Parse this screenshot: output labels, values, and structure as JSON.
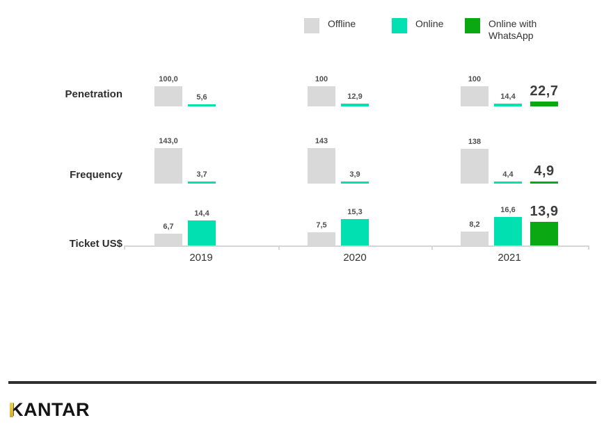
{
  "legend": [
    {
      "label": "Offline",
      "color": "#d9d9d9"
    },
    {
      "label": "Online",
      "color": "#00e0b1"
    },
    {
      "label": "Online with WhatsApp",
      "color": "#0aa812"
    }
  ],
  "logo": {
    "text": "KANTAR",
    "accent_color": "#d7aa28"
  },
  "chart_data": {
    "type": "bar",
    "title": "",
    "legend_position": "top",
    "grid": false,
    "years": [
      "2019",
      "2020",
      "2021"
    ],
    "series_names": [
      "Offline",
      "Online",
      "Online with WhatsApp"
    ],
    "colors": {
      "Offline": "#d9d9d9",
      "Online": "#00e0b1",
      "Online with WhatsApp": "#0aa812"
    },
    "rows": [
      {
        "metric": "Penetration",
        "groups": [
          {
            "year": "2019",
            "bars": [
              {
                "series": "Offline",
                "value": 100.0,
                "label": "100,0"
              },
              {
                "series": "Online",
                "value": 5.6,
                "label": "5,6"
              }
            ]
          },
          {
            "year": "2020",
            "bars": [
              {
                "series": "Offline",
                "value": 100,
                "label": "100"
              },
              {
                "series": "Online",
                "value": 12.9,
                "label": "12,9"
              }
            ]
          },
          {
            "year": "2021",
            "bars": [
              {
                "series": "Offline",
                "value": 100,
                "label": "100"
              },
              {
                "series": "Online",
                "value": 14.4,
                "label": "14,4"
              },
              {
                "series": "Online with WhatsApp",
                "value": 22.7,
                "label": "22,7",
                "emphasis": true
              }
            ]
          }
        ]
      },
      {
        "metric": "Frequency",
        "groups": [
          {
            "year": "2019",
            "bars": [
              {
                "series": "Offline",
                "value": 143.0,
                "label": "143,0"
              },
              {
                "series": "Online",
                "value": 3.7,
                "label": "3,7"
              }
            ]
          },
          {
            "year": "2020",
            "bars": [
              {
                "series": "Offline",
                "value": 143,
                "label": "143"
              },
              {
                "series": "Online",
                "value": 3.9,
                "label": "3,9"
              }
            ]
          },
          {
            "year": "2021",
            "bars": [
              {
                "series": "Offline",
                "value": 138,
                "label": "138"
              },
              {
                "series": "Online",
                "value": 4.4,
                "label": "4,4"
              },
              {
                "series": "Online with WhatsApp",
                "value": 4.9,
                "label": "4,9",
                "emphasis": true
              }
            ]
          }
        ]
      },
      {
        "metric": "Ticket US$",
        "groups": [
          {
            "year": "2019",
            "bars": [
              {
                "series": "Offline",
                "value": 6.7,
                "label": "6,7"
              },
              {
                "series": "Online",
                "value": 14.4,
                "label": "14,4"
              }
            ]
          },
          {
            "year": "2020",
            "bars": [
              {
                "series": "Offline",
                "value": 7.5,
                "label": "7,5"
              },
              {
                "series": "Online",
                "value": 15.3,
                "label": "15,3"
              }
            ]
          },
          {
            "year": "2021",
            "bars": [
              {
                "series": "Offline",
                "value": 8.2,
                "label": "8,2"
              },
              {
                "series": "Online",
                "value": 16.6,
                "label": "16,6"
              },
              {
                "series": "Online with WhatsApp",
                "value": 13.9,
                "label": "13,9",
                "emphasis": true
              }
            ]
          }
        ]
      }
    ]
  }
}
